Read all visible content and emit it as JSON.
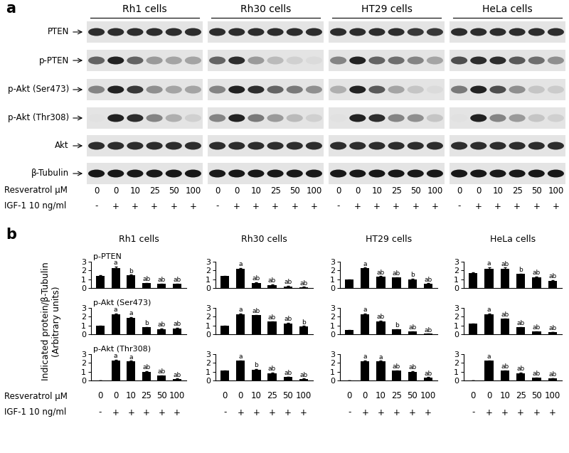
{
  "panel_a": {
    "label": "a",
    "cell_lines": [
      "Rh1 cells",
      "Rh30 cells",
      "HT29 cells",
      "HeLa cells"
    ],
    "rows": [
      {
        "name": "PTEN",
        "bands": [
          [
            0.85,
            0.85,
            0.85,
            0.85,
            0.85,
            0.85
          ],
          [
            0.85,
            0.85,
            0.85,
            0.85,
            0.85,
            0.85
          ],
          [
            0.85,
            0.85,
            0.85,
            0.85,
            0.8,
            0.8
          ],
          [
            0.85,
            0.85,
            0.85,
            0.85,
            0.85,
            0.85
          ]
        ]
      },
      {
        "name": "p-PTEN",
        "bands": [
          [
            0.6,
            0.9,
            0.6,
            0.35,
            0.3,
            0.3
          ],
          [
            0.6,
            0.85,
            0.35,
            0.2,
            0.1,
            0.05
          ],
          [
            0.45,
            0.9,
            0.6,
            0.55,
            0.45,
            0.3
          ],
          [
            0.7,
            0.85,
            0.85,
            0.65,
            0.55,
            0.4
          ]
        ]
      },
      {
        "name": "p-Akt (Ser473)",
        "bands": [
          [
            0.45,
            0.9,
            0.8,
            0.4,
            0.3,
            0.3
          ],
          [
            0.45,
            0.9,
            0.85,
            0.6,
            0.5,
            0.4
          ],
          [
            0.25,
            0.9,
            0.65,
            0.3,
            0.15,
            0.05
          ],
          [
            0.5,
            0.9,
            0.7,
            0.4,
            0.15,
            0.12
          ]
        ]
      },
      {
        "name": "p-Akt (Thr308)",
        "bands": [
          [
            0.02,
            0.9,
            0.85,
            0.45,
            0.25,
            0.1
          ],
          [
            0.45,
            0.9,
            0.5,
            0.35,
            0.2,
            0.1
          ],
          [
            0.02,
            0.9,
            0.85,
            0.45,
            0.4,
            0.15
          ],
          [
            0.02,
            0.9,
            0.45,
            0.35,
            0.15,
            0.1
          ]
        ]
      },
      {
        "name": "Akt",
        "bands": [
          [
            0.85,
            0.85,
            0.85,
            0.85,
            0.85,
            0.85
          ],
          [
            0.85,
            0.85,
            0.85,
            0.85,
            0.85,
            0.85
          ],
          [
            0.85,
            0.85,
            0.85,
            0.85,
            0.85,
            0.85
          ],
          [
            0.85,
            0.85,
            0.85,
            0.85,
            0.85,
            0.85
          ]
        ]
      },
      {
        "name": "β-Tubulin",
        "bands": [
          [
            0.95,
            0.95,
            0.95,
            0.95,
            0.95,
            0.95
          ],
          [
            0.95,
            0.95,
            0.95,
            0.95,
            0.95,
            0.95
          ],
          [
            0.95,
            0.95,
            0.95,
            0.95,
            0.95,
            0.95
          ],
          [
            0.95,
            0.95,
            0.95,
            0.95,
            0.95,
            0.95
          ]
        ]
      }
    ],
    "x_rows": [
      {
        "label": "Resveratrol μM",
        "labels": [
          "0",
          "0",
          "10",
          "25",
          "50",
          "100"
        ]
      },
      {
        "label": "IGF-1 10 ng/ml",
        "labels": [
          "-",
          "+",
          "+",
          "+",
          "+",
          "+"
        ]
      }
    ]
  },
  "panel_b": {
    "label": "b",
    "ylabel": "Indicated protein/β-Tubulin\n(Arbitrary units)",
    "x_rows": [
      {
        "label": "Resveratrol μM",
        "labels": [
          "0",
          "0",
          "10",
          "25",
          "50",
          "100"
        ]
      },
      {
        "label": "IGF-1 10 ng/ml",
        "labels": [
          "-",
          "+",
          "+",
          "+",
          "+",
          "+"
        ]
      }
    ]
  },
  "chart_data": [
    {
      "type": "bar",
      "title": "Rh1 cells",
      "subtitle": "p-PTEN",
      "categories": [
        null,
        null,
        null,
        null,
        null,
        null
      ],
      "values": [
        1.4,
        2.3,
        1.45,
        0.55,
        0.45,
        0.45
      ],
      "errors": [
        0.05,
        0.15,
        0.08,
        0.05,
        0.05,
        0.05
      ],
      "annotations": [
        null,
        "a",
        "b",
        "ab",
        "ab",
        "ab"
      ],
      "color": "#000000",
      "ylim": [
        0,
        3
      ],
      "yticks": [
        0,
        1,
        2,
        3
      ],
      "tick_labels": "y"
    },
    {
      "type": "bar",
      "title": "Rh30 cells",
      "categories": [
        null,
        null,
        null,
        null,
        null,
        null
      ],
      "values": [
        1.35,
        2.2,
        0.6,
        0.35,
        0.2,
        0.1
      ],
      "errors": [
        0.05,
        0.08,
        0.05,
        0.05,
        0.05,
        0.03
      ],
      "annotations": [
        null,
        "a",
        "ab",
        "ab",
        "ab",
        "ab"
      ],
      "color": "#000000",
      "ylim": [
        0,
        3
      ],
      "yticks": [
        0,
        1,
        2,
        3
      ],
      "tick_labels": "y"
    },
    {
      "type": "bar",
      "title": "HT29 cells",
      "categories": [
        null,
        null,
        null,
        null,
        null,
        null
      ],
      "values": [
        0.95,
        2.25,
        1.3,
        1.2,
        1.0,
        0.5
      ],
      "errors": [
        0.05,
        0.08,
        0.05,
        0.05,
        0.05,
        0.05
      ],
      "annotations": [
        null,
        "a",
        "ab",
        "ab",
        "b",
        "ab"
      ],
      "color": "#000000",
      "ylim": [
        0,
        3
      ],
      "yticks": [
        0,
        1,
        2,
        3
      ],
      "tick_labels": "y"
    },
    {
      "type": "bar",
      "title": "HeLa cells",
      "categories": [
        null,
        null,
        null,
        null,
        null,
        null
      ],
      "values": [
        1.7,
        2.2,
        2.2,
        1.6,
        1.25,
        0.85
      ],
      "errors": [
        0.05,
        0.15,
        0.12,
        0.05,
        0.05,
        0.08
      ],
      "annotations": [
        null,
        "a",
        "ab",
        "b",
        "ab",
        "ab"
      ],
      "color": "#000000",
      "ylim": [
        0,
        3
      ],
      "yticks": [
        0,
        1,
        2,
        3
      ],
      "tick_labels": "y"
    },
    {
      "type": "bar",
      "subtitle": "p-Akt (Ser473)",
      "categories": [
        null,
        null,
        null,
        null,
        null,
        null
      ],
      "values": [
        0.95,
        2.25,
        1.9,
        0.8,
        0.6,
        0.65
      ],
      "errors": [
        0.05,
        0.12,
        0.05,
        0.05,
        0.05,
        0.1
      ],
      "annotations": [
        null,
        "a",
        "a",
        "b",
        "ab",
        "ab"
      ],
      "color": "#000000",
      "ylim": [
        0,
        3
      ],
      "yticks": [
        0,
        1,
        2,
        3
      ],
      "tick_labels": "y"
    },
    {
      "type": "bar",
      "categories": [
        null,
        null,
        null,
        null,
        null,
        null
      ],
      "values": [
        0.95,
        2.3,
        2.15,
        1.45,
        1.25,
        0.9
      ],
      "errors": [
        0.03,
        0.05,
        0.05,
        0.05,
        0.05,
        0.05
      ],
      "annotations": [
        null,
        "a",
        "ab",
        "ab",
        "ab",
        "b"
      ],
      "color": "#000000",
      "ylim": [
        0,
        3
      ],
      "yticks": [
        0,
        1,
        2,
        3
      ],
      "tick_labels": "y"
    },
    {
      "type": "bar",
      "categories": [
        null,
        null,
        null,
        null,
        null,
        null
      ],
      "values": [
        0.45,
        2.3,
        1.5,
        0.55,
        0.3,
        0.05
      ],
      "errors": [
        0.03,
        0.08,
        0.05,
        0.05,
        0.03,
        0.02
      ],
      "annotations": [
        null,
        "a",
        "ab",
        "b",
        "ab",
        "ab"
      ],
      "color": "#000000",
      "ylim": [
        0,
        3
      ],
      "yticks": [
        0,
        1,
        2,
        3
      ],
      "tick_labels": "y"
    },
    {
      "type": "bar",
      "categories": [
        null,
        null,
        null,
        null,
        null,
        null
      ],
      "values": [
        1.2,
        2.25,
        1.75,
        0.8,
        0.3,
        0.25
      ],
      "errors": [
        0.05,
        0.1,
        0.05,
        0.05,
        0.03,
        0.03
      ],
      "annotations": [
        null,
        "a",
        "ab",
        "ab",
        "ab",
        "ab"
      ],
      "color": "#000000",
      "ylim": [
        0,
        3
      ],
      "yticks": [
        0,
        1,
        2,
        3
      ],
      "tick_labels": "y"
    },
    {
      "type": "bar",
      "subtitle": "p-Akt (Thr308)",
      "categories": [
        null,
        null,
        null,
        null,
        null,
        null
      ],
      "values": [
        0.02,
        2.25,
        2.15,
        1.0,
        0.55,
        0.2
      ],
      "errors": [
        0.01,
        0.1,
        0.08,
        0.05,
        0.03,
        0.02
      ],
      "annotations": [
        null,
        "a",
        "a",
        "ab",
        "ab",
        "ab"
      ],
      "color": "#000000",
      "ylim": [
        0,
        3
      ],
      "yticks": [
        0,
        1,
        2,
        3
      ],
      "tick_labels": "y"
    },
    {
      "type": "bar",
      "categories": [
        null,
        null,
        null,
        null,
        null,
        null
      ],
      "values": [
        1.1,
        2.25,
        1.25,
        0.85,
        0.4,
        0.2
      ],
      "errors": [
        0.03,
        0.05,
        0.05,
        0.05,
        0.03,
        0.02
      ],
      "annotations": [
        null,
        "a",
        "b",
        "ab",
        "ab",
        "ab"
      ],
      "color": "#000000",
      "ylim": [
        0,
        3
      ],
      "yticks": [
        0,
        1,
        2,
        3
      ],
      "tick_labels": "y"
    },
    {
      "type": "bar",
      "categories": [
        null,
        null,
        null,
        null,
        null,
        null
      ],
      "values": [
        0.02,
        2.2,
        2.2,
        1.1,
        1.0,
        0.35
      ],
      "errors": [
        0.01,
        0.1,
        0.05,
        0.05,
        0.05,
        0.03
      ],
      "annotations": [
        null,
        "a",
        "a",
        "ab",
        "ab",
        "ab"
      ],
      "color": "#000000",
      "ylim": [
        0,
        3
      ],
      "yticks": [
        0,
        1,
        2,
        3
      ],
      "tick_labels": "y"
    },
    {
      "type": "bar",
      "categories": [
        null,
        null,
        null,
        null,
        null,
        null
      ],
      "values": [
        0.0,
        2.25,
        1.1,
        0.85,
        0.3,
        0.25
      ],
      "errors": [
        0.01,
        0.05,
        0.05,
        0.05,
        0.03,
        0.02
      ],
      "annotations": [
        null,
        "a",
        "ab",
        "ab",
        "ab",
        "ab"
      ],
      "color": "#000000",
      "ylim": [
        0,
        3
      ],
      "yticks": [
        0,
        1,
        2,
        3
      ],
      "tick_labels": "y"
    }
  ]
}
